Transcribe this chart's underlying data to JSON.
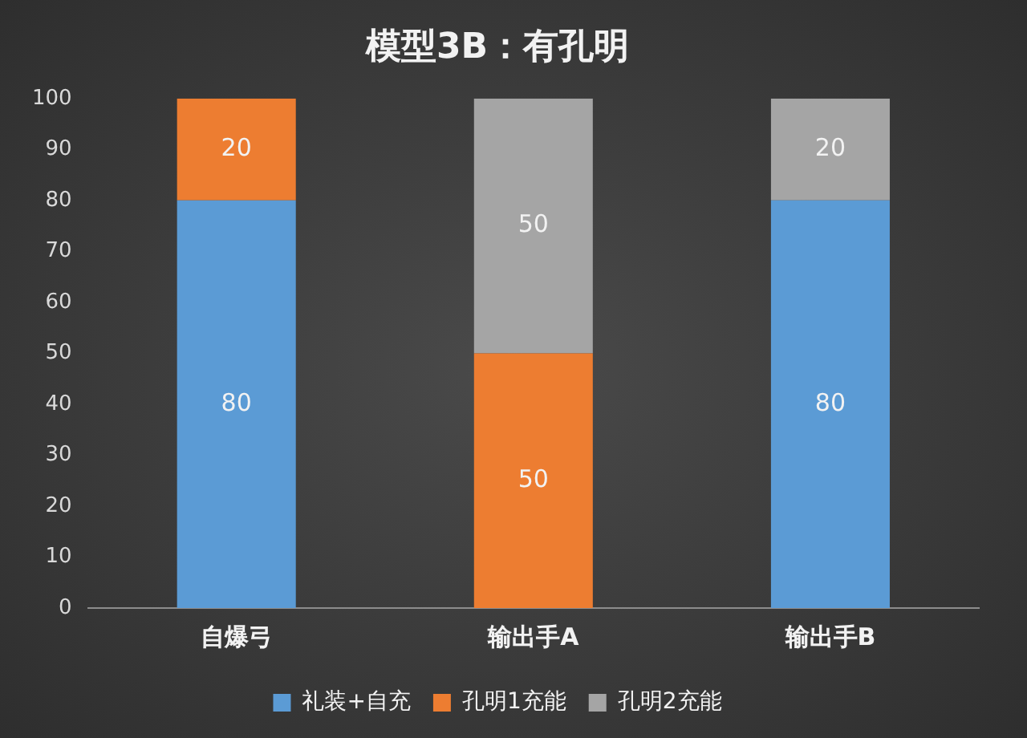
{
  "chart_data": {
    "type": "bar",
    "title": "模型3B：有孔明",
    "categories": [
      "自爆弓",
      "输出手A",
      "输出手B"
    ],
    "stacked": true,
    "data_labels": true,
    "legend": "bottom",
    "grid": false,
    "ylim": [
      0,
      100
    ],
    "yticks": [
      0,
      10,
      20,
      30,
      40,
      50,
      60,
      70,
      80,
      90,
      100
    ],
    "series": [
      {
        "name": "礼装+自充",
        "color": "#5b9bd5",
        "values": [
          80,
          null,
          80
        ]
      },
      {
        "name": "孔明1充能",
        "color": "#ed7d31",
        "values": [
          20,
          50,
          null
        ]
      },
      {
        "name": "孔明2充能",
        "color": "#a5a5a5",
        "values": [
          null,
          50,
          20
        ]
      }
    ]
  }
}
